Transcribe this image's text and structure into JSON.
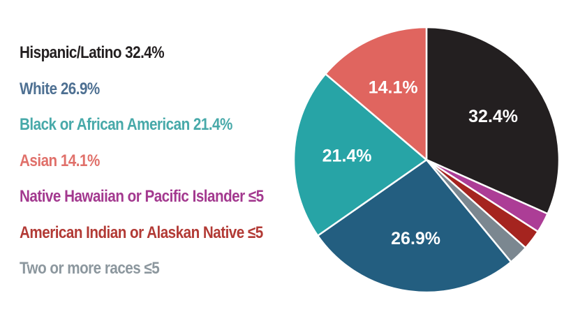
{
  "chart_data": {
    "type": "pie",
    "start": "12 o'clock, clockwise",
    "slices": [
      {
        "label": "Hispanic/Latino",
        "value": 32.4,
        "display": "32.4%",
        "color": "#231f20",
        "legend_text": "Hispanic/Latino 32.4%",
        "legend_color": "#231f20",
        "show_label": true
      },
      {
        "label": "Native Hawaiian or Pacific Islander",
        "value": 2.5,
        "display": "≤5",
        "color": "#ac3d96",
        "legend_text": "Native Hawaiian or Pacific Islander ≤5",
        "legend_color": "#a3398f",
        "show_label": false
      },
      {
        "label": "American Indian or Alaskan Native",
        "value": 2.5,
        "display": "≤5",
        "color": "#a5241f",
        "legend_text": "American Indian or Alaskan Native ≤5",
        "legend_color": "#b23a35",
        "show_label": false
      },
      {
        "label": "Two or more races",
        "value": 2.5,
        "display": "≤5",
        "color": "#7b8790",
        "legend_text": "Two or more races ≤5",
        "legend_color": "#8c979e",
        "show_label": false
      },
      {
        "label": "White",
        "value": 26.9,
        "display": "26.9%",
        "color": "#235e80",
        "legend_text": "White 26.9%",
        "legend_color": "#4e7092",
        "show_label": true
      },
      {
        "label": "Black or African American",
        "value": 21.4,
        "display": "21.4%",
        "color": "#27a4a6",
        "legend_text": "Black or African American 21.4%",
        "legend_color": "#47a9a9",
        "show_label": true
      },
      {
        "label": "Asian",
        "value": 14.1,
        "display": "14.1%",
        "color": "#e0655f",
        "legend_text": "Asian 14.1%",
        "legend_color": "#e0706a",
        "show_label": true
      }
    ],
    "legend_order": [
      "Hispanic/Latino",
      "White",
      "Black or African American",
      "Asian",
      "Native Hawaiian or Pacific Islander",
      "American Indian or Alaskan Native",
      "Two or more races"
    ],
    "legend_position": "left"
  }
}
